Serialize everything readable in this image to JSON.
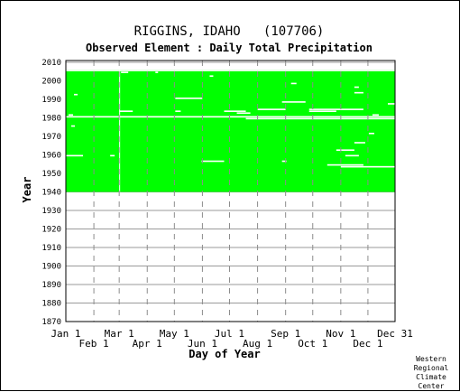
{
  "chart_data": {
    "type": "heatmap",
    "title": "RIGGINS, IDAHO   (107706)",
    "subtitle": "Observed Element : Daily Total Precipitation",
    "xlabel": "Day of Year",
    "ylabel": "Year",
    "x_ticks_upper": [
      "Jan 1",
      "Mar 1",
      "May 1",
      "Jul 1",
      "Sep 1",
      "Nov 1",
      "Dec 31"
    ],
    "x_ticks_lower": [
      "Feb 1",
      "Apr 1",
      "Jun 1",
      "Aug 1",
      "Oct 1",
      "Dec 1"
    ],
    "x_tick_days_upper": [
      1,
      60,
      121,
      182,
      244,
      305,
      365
    ],
    "x_tick_days_lower": [
      32,
      91,
      152,
      213,
      274,
      335
    ],
    "xlim": [
      1,
      365
    ],
    "ylim": [
      1870,
      2011
    ],
    "y_ticks": [
      1870,
      1880,
      1890,
      1900,
      1910,
      1920,
      1930,
      1940,
      1950,
      1960,
      1970,
      1980,
      1990,
      2000,
      2010
    ],
    "data_years": [
      1940,
      2005
    ],
    "data_color": "#00ff00",
    "missing_color": "#ffffff",
    "gridlines": true,
    "missing_segments": [
      {
        "year": 1980,
        "start_day": 1,
        "end_day": 365
      },
      {
        "year": 1953,
        "start_day": 305,
        "end_day": 365
      },
      {
        "year": 1954,
        "start_day": 290,
        "end_day": 330
      },
      {
        "year": 1956,
        "start_day": 151,
        "end_day": 176
      },
      {
        "year": 1956,
        "start_day": 240,
        "end_day": 245
      },
      {
        "year": 1959,
        "start_day": 1,
        "end_day": 20
      },
      {
        "year": 1959,
        "start_day": 50,
        "end_day": 55
      },
      {
        "year": 1959,
        "start_day": 310,
        "end_day": 325
      },
      {
        "year": 1962,
        "start_day": 300,
        "end_day": 320
      },
      {
        "year": 1966,
        "start_day": 320,
        "end_day": 332
      },
      {
        "year": 1971,
        "start_day": 336,
        "end_day": 342
      },
      {
        "year": 1975,
        "start_day": 7,
        "end_day": 11
      },
      {
        "year": 1979,
        "start_day": 200,
        "end_day": 365
      },
      {
        "year": 1981,
        "start_day": 4,
        "end_day": 9
      },
      {
        "year": 1981,
        "start_day": 340,
        "end_day": 347
      },
      {
        "year": 1982,
        "start_day": 190,
        "end_day": 205
      },
      {
        "year": 1983,
        "start_day": 60,
        "end_day": 75
      },
      {
        "year": 1983,
        "start_day": 122,
        "end_day": 128
      },
      {
        "year": 1983,
        "start_day": 176,
        "end_day": 200
      },
      {
        "year": 1983,
        "start_day": 270,
        "end_day": 300
      },
      {
        "year": 1984,
        "start_day": 213,
        "end_day": 244
      },
      {
        "year": 1984,
        "start_day": 270,
        "end_day": 330
      },
      {
        "year": 1987,
        "start_day": 357,
        "end_day": 365
      },
      {
        "year": 1988,
        "start_day": 240,
        "end_day": 266
      },
      {
        "year": 1990,
        "start_day": 122,
        "end_day": 152
      },
      {
        "year": 1992,
        "start_day": 10,
        "end_day": 14
      },
      {
        "year": 1993,
        "start_day": 320,
        "end_day": 330
      },
      {
        "year": 1996,
        "start_day": 320,
        "end_day": 325
      },
      {
        "year": 1998,
        "start_day": 250,
        "end_day": 256
      },
      {
        "year": 2002,
        "start_day": 160,
        "end_day": 164
      },
      {
        "year": 2004,
        "start_day": 62,
        "end_day": 70
      },
      {
        "year": 2004,
        "start_day": 100,
        "end_day": 103
      },
      {
        "year": 2005,
        "start_day": 1,
        "end_day": 365
      }
    ],
    "missing_columns": [
      {
        "day": 60,
        "start_year": 1940,
        "end_year": 2005
      }
    ]
  },
  "credit": [
    "Western",
    "Regional",
    "Climate",
    "Center"
  ]
}
